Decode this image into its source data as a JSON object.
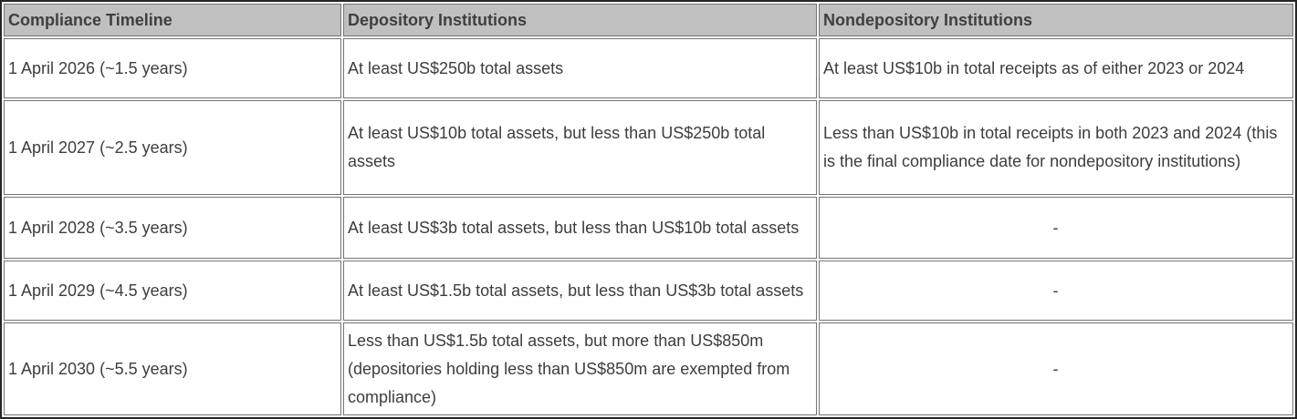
{
  "table": {
    "title_semantic": "Compliance timeline table",
    "columns": [
      {
        "label": "Compliance Timeline"
      },
      {
        "label": "Depository Institutions"
      },
      {
        "label": "Nondepository Institutions"
      }
    ],
    "rows": [
      {
        "timeline": "1 April 2026 (~1.5 years)",
        "depository": "At least US$250b total assets",
        "nondepository": "At least US$10b in total receipts as of either 2023 or 2024"
      },
      {
        "timeline": "1 April 2027 (~2.5 years)",
        "depository": "At least US$10b total assets, but less than US$250b total assets",
        "nondepository": "Less than US$10b in total receipts in both 2023 and 2024 (this is the final compliance date for nondepository institutions)"
      },
      {
        "timeline": "1 April 2028 (~3.5 years)",
        "depository": "At least US$3b total assets, but less than US$10b total assets",
        "nondepository": "-"
      },
      {
        "timeline": "1 April 2029 (~4.5 years)",
        "depository": "At least US$1.5b total assets, but less than US$3b total assets",
        "nondepository": "-"
      },
      {
        "timeline": "1 April 2030 (~5.5 years)",
        "depository": "Less than US$1.5b total assets, but more than US$850m (depositories holding less than US$850m are exempted from compliance)",
        "nondepository": "-"
      }
    ],
    "colors": {
      "header_background": "#c0c0c0",
      "header_text": "#3f3f3f",
      "body_text": "#3d3d3d",
      "cell_border": "#747474",
      "outer_border": "#262626",
      "body_background": "#ffffff"
    }
  }
}
